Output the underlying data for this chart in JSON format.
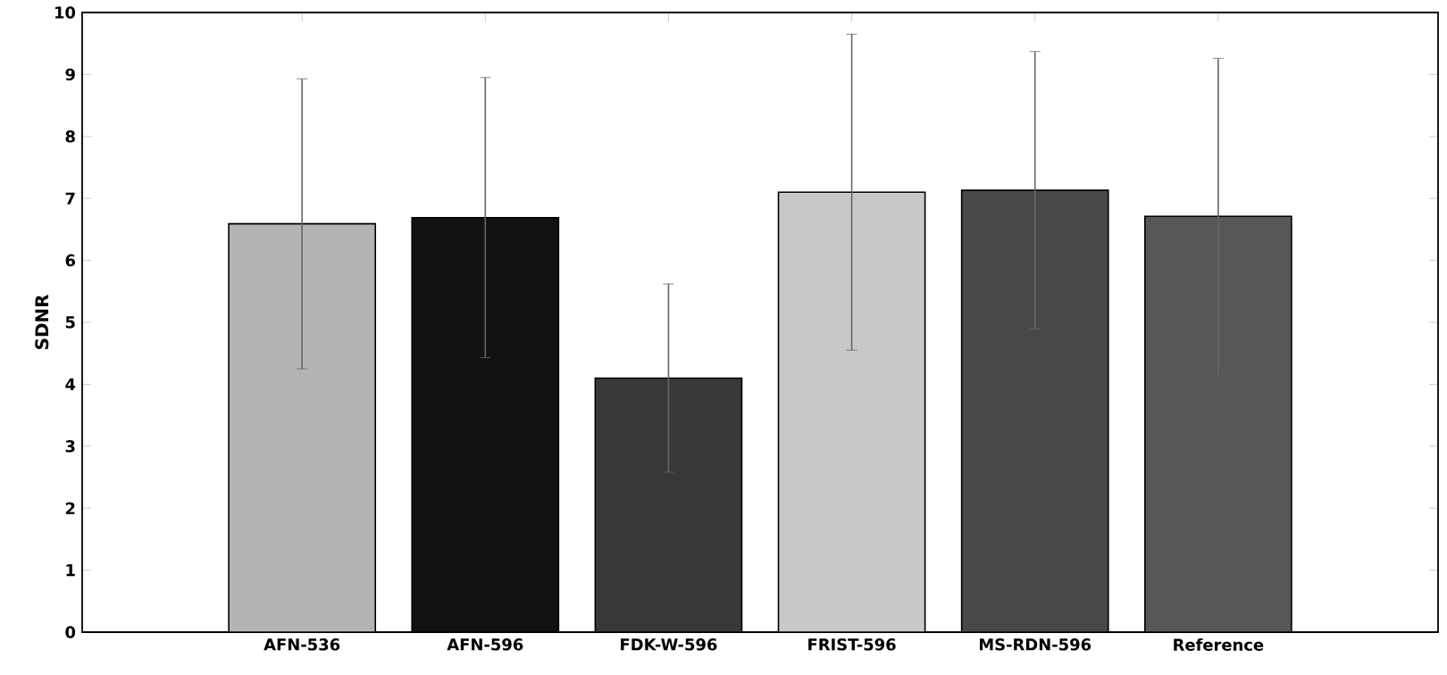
{
  "chart_data": {
    "type": "bar",
    "ylabel": "SDNR",
    "categories": [
      "AFN-536",
      "AFN-596",
      "FDK-W-596",
      "FRIST-596",
      "MS-RDN-596",
      "Reference"
    ],
    "values": [
      6.59,
      6.69,
      4.1,
      7.1,
      7.13,
      6.71
    ],
    "errors": [
      2.34,
      2.26,
      1.52,
      2.55,
      2.24,
      2.55
    ],
    "colors": [
      "#b4b4b4",
      "#111111",
      "#383838",
      "#c8c8c8",
      "#484848",
      "#575757"
    ],
    "ylim": [
      0,
      10
    ],
    "yticks": [
      0,
      1,
      2,
      3,
      4,
      5,
      6,
      7,
      8,
      9,
      10
    ]
  }
}
